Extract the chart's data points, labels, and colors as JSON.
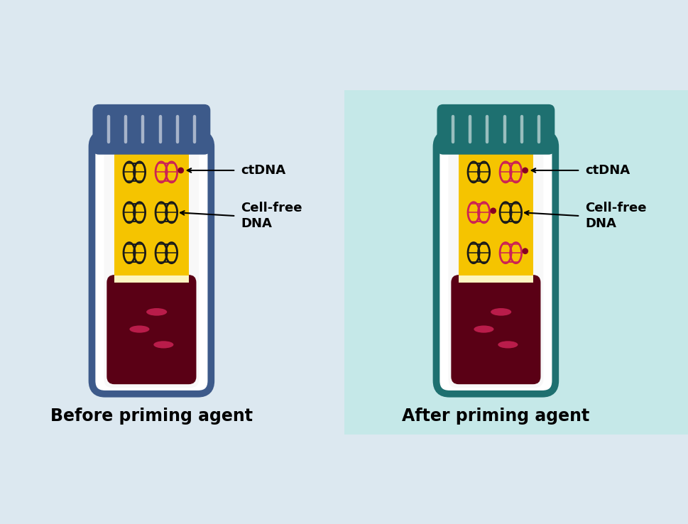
{
  "left_bg": "#dce8f0",
  "right_bg": "#c5e8e8",
  "left_tube_stroke": "#3d5a8a",
  "right_tube_stroke": "#1e7070",
  "left_cap_color": "#3d5a8a",
  "right_cap_color": "#1e7070",
  "tube_fill": "#ffffff",
  "yellow_layer_color": "#f5c400",
  "light_yellow_color": "#fdf5c0",
  "blood_color": "#5a0015",
  "blood_ellipse_color": "#c42050",
  "dna_normal_color": "#1a1a1a",
  "dna_mutant_color": "#cc2255",
  "dot_color": "#880022",
  "label_ctdna": "ctDNA",
  "label_cellfree": "Cell-free\nDNA",
  "label_before": "Before priming agent",
  "label_after": "After priming agent",
  "label_fontsize": 13,
  "title_fontsize": 17
}
